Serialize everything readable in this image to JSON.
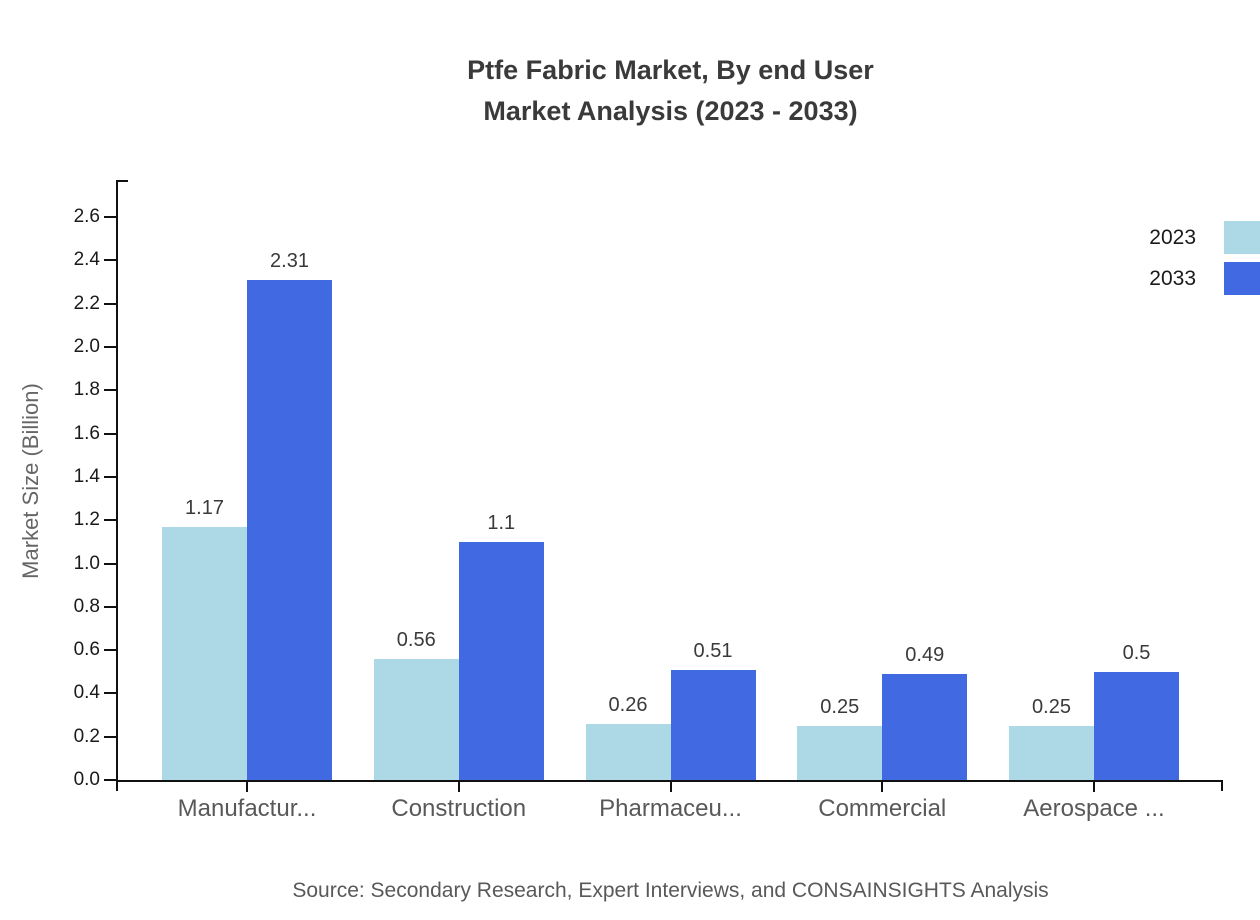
{
  "title": {
    "line1": "Ptfe Fabric Market, By end User",
    "line2": "Market Analysis (2023 - 2033)"
  },
  "chart_data": {
    "type": "bar",
    "title": "Ptfe Fabric Market, By end User Market Analysis (2023 - 2033)",
    "categories": [
      "Manufactur...",
      "Construction",
      "Pharmaceu...",
      "Commercial",
      "Aerospace ..."
    ],
    "series": [
      {
        "name": "2023",
        "color": "#ADD8E6",
        "values": [
          1.17,
          0.56,
          0.26,
          0.25,
          0.25
        ]
      },
      {
        "name": "2033",
        "color": "#4169E1",
        "values": [
          2.31,
          1.1,
          0.51,
          0.49,
          0.5
        ]
      }
    ],
    "xlabel": "",
    "ylabel": "Market Size (Billion)",
    "ylim": [
      0,
      2.75
    ],
    "yticks": [
      0.0,
      0.2,
      0.4,
      0.6,
      0.8,
      1.0,
      1.2,
      1.4,
      1.6,
      1.8,
      2.0,
      2.2,
      2.4,
      2.6
    ],
    "grid": false,
    "legend_position": "upper-right-edge",
    "bar_value_labels": true
  },
  "source_note": "Source: Secondary Research, Expert Interviews, and CONSAINSIGHTS Analysis",
  "colors": {
    "background": "#ffffff",
    "axis": "#111111",
    "title_text": "#3a3a3a",
    "tick_text": "#1a1a1a",
    "category_text": "#595959",
    "value_label_text": "#3a3a3a",
    "source_text": "#595959",
    "series_2023": "#ADD8E6",
    "series_2033": "#4169E1"
  }
}
